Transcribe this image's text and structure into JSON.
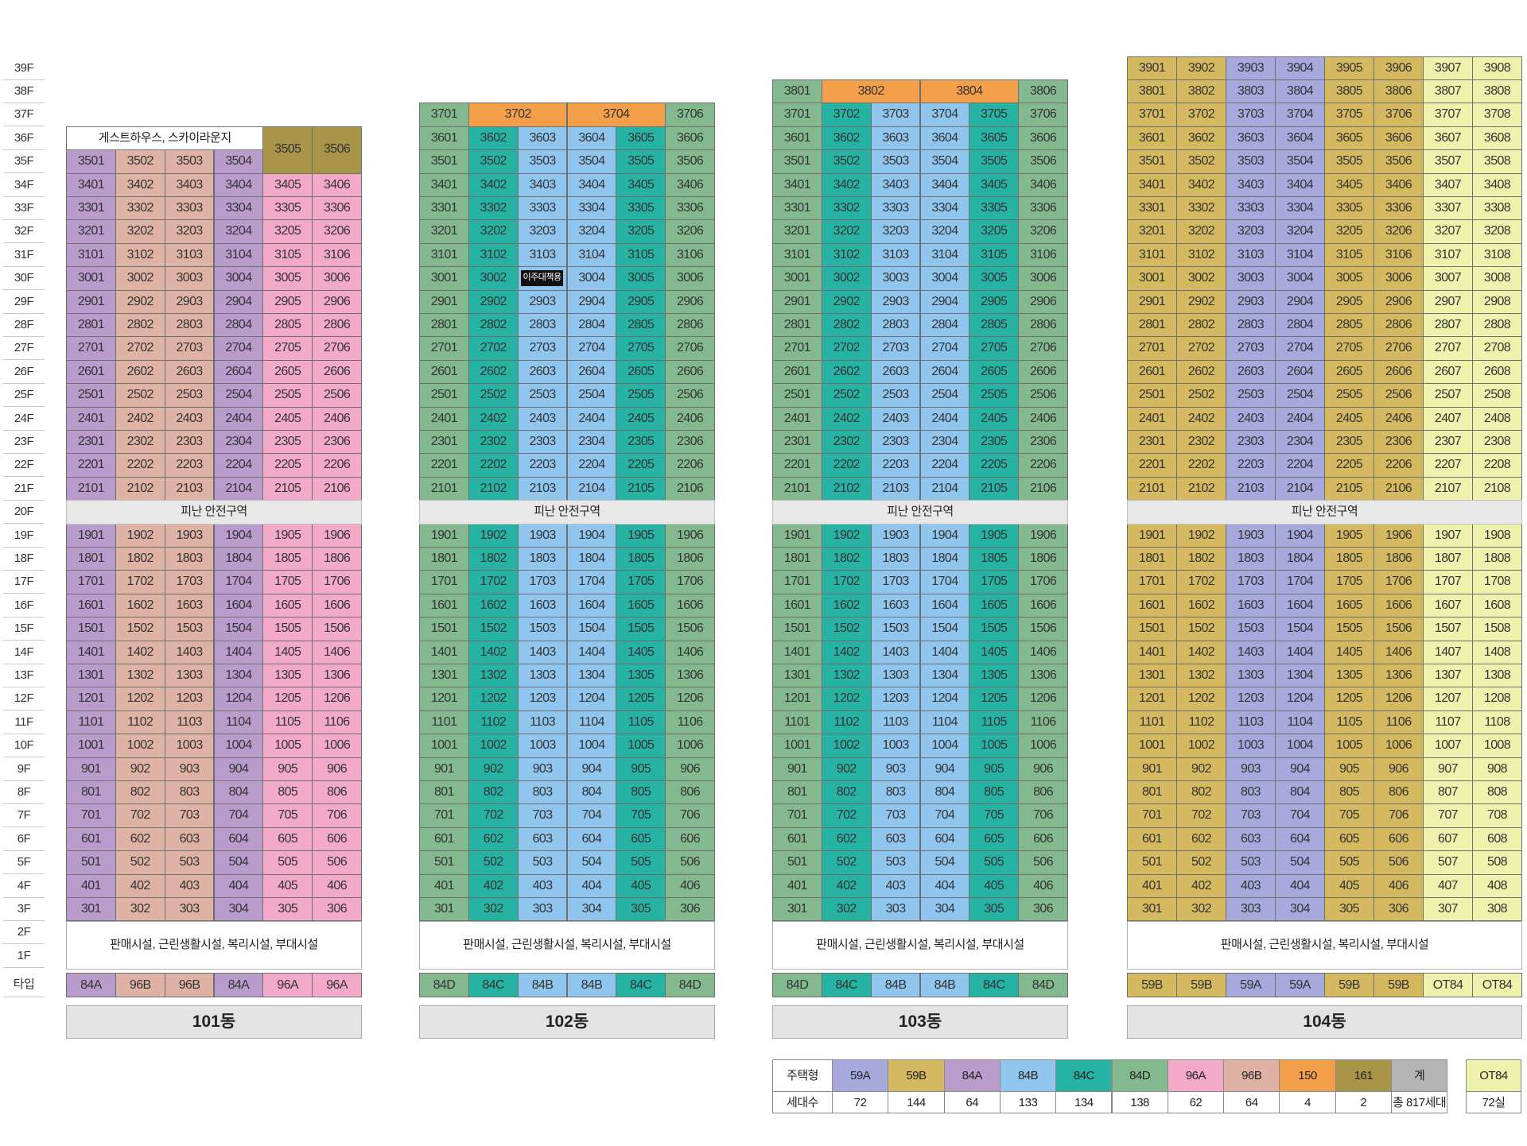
{
  "floor_axis": {
    "type_label": "타입",
    "floors": [
      "39F",
      "38F",
      "37F",
      "36F",
      "35F",
      "34F",
      "33F",
      "32F",
      "31F",
      "30F",
      "29F",
      "28F",
      "27F",
      "26F",
      "25F",
      "24F",
      "23F",
      "22F",
      "21F",
      "20F",
      "19F",
      "18F",
      "17F",
      "16F",
      "15F",
      "14F",
      "13F",
      "12F",
      "11F",
      "10F",
      "9F",
      "8F",
      "7F",
      "6F",
      "5F",
      "4F",
      "3F",
      "2F",
      "1F"
    ]
  },
  "colors": {
    "59A": "#a7a9dc",
    "59B": "#d4b960",
    "84A": "#b99ccc",
    "84B": "#90c6ee",
    "84C": "#27b3a3",
    "84D": "#84b98f",
    "96A": "#f3aac8",
    "96B": "#dfb2a6",
    "150": "#f4a04a",
    "161": "#a99548",
    "OT84": "#eef2ac",
    "total": "#b4b4b4"
  },
  "buildings": [
    {
      "name": "101동",
      "top_floor": 35,
      "guest_floor": 36,
      "guest_label": "게스트하우스, 스카이라운지",
      "refuge_label": "피난 안전구역",
      "commercial_label": "판매시설, 근린생활시설, 복리시설, 부대시설",
      "columns": [
        "84A",
        "96B",
        "96B",
        "84A",
        "96A",
        "96A"
      ],
      "special": [
        {
          "floor": 35,
          "units": [
            {
              "label": "3505",
              "span": [
                5,
                5
              ],
              "rows": 2,
              "type": "161"
            },
            {
              "label": "3506",
              "span": [
                6,
                6
              ],
              "rows": 2,
              "type": "161"
            }
          ]
        }
      ]
    },
    {
      "name": "102동",
      "top_floor": 36,
      "refuge_label": "피난 안전구역",
      "commercial_label": "판매시설, 근린생활시설, 복리시설, 부대시설",
      "columns": [
        "84D",
        "84C",
        "84B",
        "84B",
        "84C",
        "84D"
      ],
      "special": [
        {
          "floor": 37,
          "units": [
            {
              "label": "3701",
              "span": [
                1,
                1
              ],
              "type": "84D"
            },
            {
              "label": "3702",
              "span": [
                2,
                3
              ],
              "type": "150"
            },
            {
              "label": "3704",
              "span": [
                4,
                5
              ],
              "type": "150"
            },
            {
              "label": "3706",
              "span": [
                6,
                6
              ],
              "type": "84D"
            }
          ]
        }
      ],
      "badge": {
        "floor": 30,
        "col": 3,
        "label": "이주대책용"
      }
    },
    {
      "name": "103동",
      "top_floor": 37,
      "refuge_label": "피난 안전구역",
      "commercial_label": "판매시설, 근린생활시설, 복리시설, 부대시설",
      "columns": [
        "84D",
        "84C",
        "84B",
        "84B",
        "84C",
        "84D"
      ],
      "special": [
        {
          "floor": 38,
          "units": [
            {
              "label": "3801",
              "span": [
                1,
                1
              ],
              "type": "84D"
            },
            {
              "label": "3802",
              "span": [
                2,
                3
              ],
              "type": "150"
            },
            {
              "label": "3804",
              "span": [
                4,
                5
              ],
              "type": "150"
            },
            {
              "label": "3806",
              "span": [
                6,
                6
              ],
              "type": "84D"
            }
          ]
        }
      ]
    },
    {
      "name": "104동",
      "top_floor": 39,
      "refuge_label": "피난 안전구역",
      "commercial_label": "판매시설, 근린생활시설, 복리시설, 부대시설",
      "columns": [
        "59B",
        "59B",
        "59A",
        "59A",
        "59B",
        "59B",
        "OT84",
        "OT84"
      ]
    }
  ],
  "legend": {
    "row1_label": "주택형",
    "row2_label": "세대수",
    "items": [
      {
        "type": "59A",
        "count": "72"
      },
      {
        "type": "59B",
        "count": "144"
      },
      {
        "type": "84A",
        "count": "64"
      },
      {
        "type": "84B",
        "count": "133"
      },
      {
        "type": "84C",
        "count": "134"
      },
      {
        "type": "84D",
        "count": "138"
      },
      {
        "type": "96A",
        "count": "62"
      },
      {
        "type": "96B",
        "count": "64"
      },
      {
        "type": "150",
        "count": "4"
      },
      {
        "type": "161",
        "count": "2"
      },
      {
        "type": "계",
        "count": "총 817세대"
      }
    ],
    "extra": {
      "type": "OT84",
      "count": "72실"
    }
  }
}
